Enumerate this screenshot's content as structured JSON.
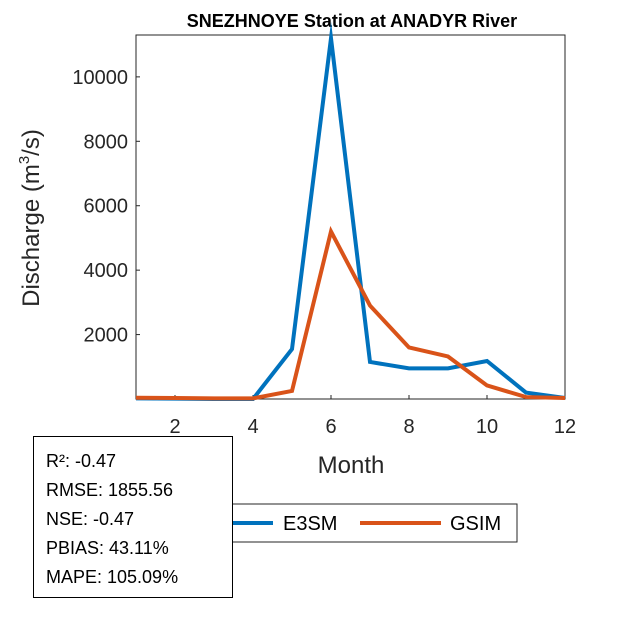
{
  "chart_data": {
    "type": "line",
    "title": "SNEZHNOYE  Station at  ANADYR  River",
    "xlabel": "Month",
    "ylabel_prefix": "Discharge (m",
    "ylabel_sup": "3",
    "ylabel_suffix": "/s)",
    "xlim": [
      1,
      12
    ],
    "ylim": [
      0,
      11300
    ],
    "xticks": [
      2,
      4,
      6,
      8,
      10,
      12
    ],
    "yticks": [
      2000,
      4000,
      6000,
      8000,
      10000
    ],
    "x": [
      1,
      2,
      3,
      4,
      5,
      6,
      7,
      8,
      9,
      10,
      11,
      12
    ],
    "series": [
      {
        "name": "E3SM",
        "color": "#0072BD",
        "values": [
          20,
          10,
          0,
          0,
          1550,
          11200,
          1150,
          950,
          950,
          1180,
          200,
          30
        ]
      },
      {
        "name": "GSIM",
        "color": "#D95319",
        "values": [
          40,
          30,
          20,
          20,
          250,
          5200,
          2900,
          1600,
          1320,
          420,
          60,
          30
        ]
      }
    ],
    "legend_position": "bottom-center"
  },
  "stats": {
    "r2": "R²: -0.47",
    "rmse": "RMSE: 1855.56",
    "nse": "NSE: -0.47",
    "pbias": "PBIAS: 43.11%",
    "mape": "MAPE: 105.09%"
  }
}
